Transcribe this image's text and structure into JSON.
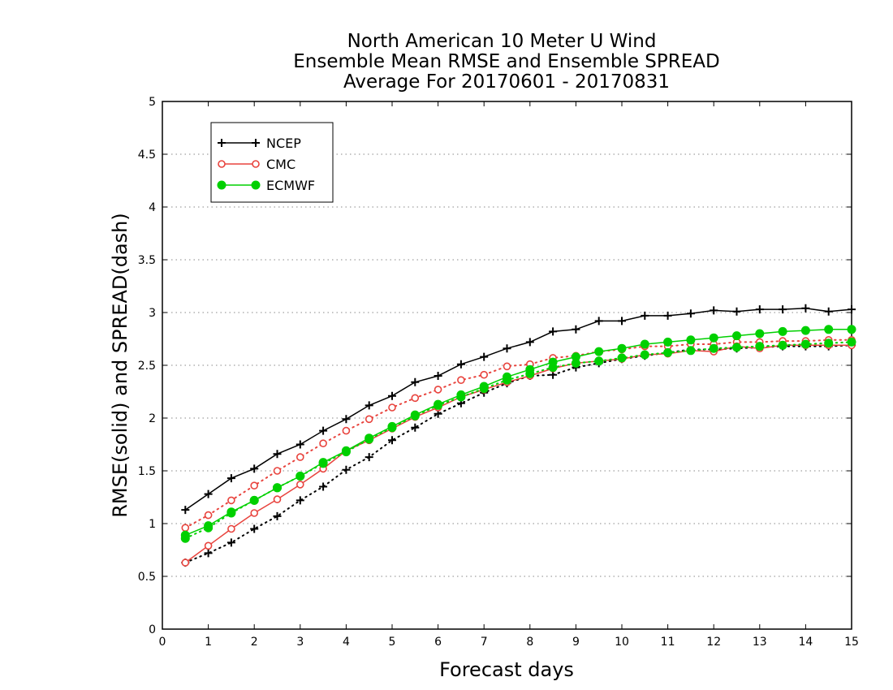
{
  "chart_data": {
    "type": "line",
    "title": [
      "North American 10 Meter U Wind",
      "Ensemble Mean RMSE and Ensemble SPREAD",
      "Average For 20170601 - 20170831"
    ],
    "xlabel": "Forecast days",
    "ylabel": "RMSE(solid) and SPREAD(dash)",
    "xlim": [
      0,
      15
    ],
    "ylim": [
      0,
      5
    ],
    "x_ticks": [
      "0",
      "1",
      "2",
      "3",
      "4",
      "5",
      "6",
      "7",
      "8",
      "9",
      "10",
      "11",
      "12",
      "13",
      "14",
      "15"
    ],
    "y_ticks": [
      "0",
      "0.5",
      "1",
      "1.5",
      "2",
      "2.5",
      "3",
      "3.5",
      "4",
      "4.5",
      "5"
    ],
    "grid": "horizontal dotted",
    "legend_position": "top-left",
    "x": [
      0.5,
      1,
      1.5,
      2,
      2.5,
      3,
      3.5,
      4,
      4.5,
      5,
      5.5,
      6,
      6.5,
      7,
      7.5,
      8,
      8.5,
      9,
      9.5,
      10,
      10.5,
      11,
      11.5,
      12,
      12.5,
      13,
      13.5,
      14,
      14.5,
      15
    ],
    "series": [
      {
        "name": "NCEP",
        "color": "#000000",
        "marker": "plus",
        "rmse": [
          1.13,
          1.28,
          1.43,
          1.52,
          1.66,
          1.75,
          1.88,
          1.99,
          2.12,
          2.21,
          2.34,
          2.4,
          2.51,
          2.58,
          2.66,
          2.72,
          2.82,
          2.84,
          2.92,
          2.92,
          2.97,
          2.97,
          2.99,
          3.02,
          3.01,
          3.03,
          3.03,
          3.04,
          3.01,
          3.03
        ],
        "spread": [
          0.63,
          0.72,
          0.82,
          0.95,
          1.07,
          1.22,
          1.35,
          1.51,
          1.63,
          1.79,
          1.91,
          2.04,
          2.14,
          2.24,
          2.33,
          2.4,
          2.41,
          2.48,
          2.52,
          2.56,
          2.59,
          2.62,
          2.65,
          2.65,
          2.66,
          2.67,
          2.68,
          2.68,
          2.68,
          2.69
        ]
      },
      {
        "name": "CMC",
        "color": "#e8433d",
        "marker": "open-circle",
        "rmse": [
          0.63,
          0.79,
          0.95,
          1.1,
          1.23,
          1.37,
          1.52,
          1.69,
          1.79,
          1.9,
          2.01,
          2.1,
          2.2,
          2.27,
          2.34,
          2.4,
          2.47,
          2.52,
          2.54,
          2.56,
          2.6,
          2.61,
          2.64,
          2.63,
          2.68,
          2.66,
          2.69,
          2.69,
          2.69,
          2.69
        ],
        "spread": [
          0.96,
          1.08,
          1.22,
          1.36,
          1.5,
          1.63,
          1.76,
          1.88,
          1.99,
          2.1,
          2.19,
          2.27,
          2.36,
          2.41,
          2.49,
          2.51,
          2.57,
          2.59,
          2.63,
          2.65,
          2.68,
          2.68,
          2.7,
          2.7,
          2.72,
          2.72,
          2.73,
          2.73,
          2.74,
          2.74
        ]
      },
      {
        "name": "ECMWF",
        "color": "#00d000",
        "marker": "filled-circle",
        "rmse": [
          0.89,
          0.98,
          1.11,
          1.22,
          1.34,
          1.45,
          1.58,
          1.69,
          1.81,
          1.92,
          2.03,
          2.13,
          2.22,
          2.3,
          2.39,
          2.46,
          2.53,
          2.58,
          2.63,
          2.66,
          2.7,
          2.72,
          2.74,
          2.76,
          2.78,
          2.8,
          2.82,
          2.83,
          2.84,
          2.84
        ],
        "spread": [
          0.86,
          0.96,
          1.1,
          1.22,
          1.34,
          1.45,
          1.57,
          1.68,
          1.8,
          1.91,
          2.02,
          2.12,
          2.2,
          2.28,
          2.36,
          2.42,
          2.48,
          2.52,
          2.54,
          2.57,
          2.6,
          2.62,
          2.64,
          2.66,
          2.67,
          2.68,
          2.69,
          2.7,
          2.71,
          2.72
        ]
      }
    ]
  }
}
